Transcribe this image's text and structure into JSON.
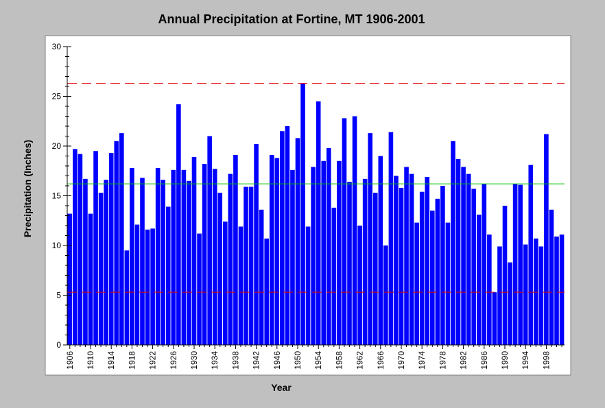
{
  "chart_data": {
    "type": "bar",
    "title": "Annual Precipitation at Fortine, MT 1906-2001",
    "xlabel": "Year",
    "ylabel": "Precipitation (Inches)",
    "ylim": [
      0,
      30
    ],
    "yticks": [
      "0",
      "5",
      "10",
      "15",
      "20",
      "25",
      "30"
    ],
    "xtick_labels": [
      "1906",
      "1910",
      "1914",
      "1918",
      "1922",
      "1926",
      "1930",
      "1934",
      "1938",
      "1942",
      "1946",
      "1950",
      "1954",
      "1958",
      "1962",
      "1966",
      "1970",
      "1974",
      "1978",
      "1982",
      "1986",
      "1990",
      "1994",
      "1998"
    ],
    "grid": false,
    "legend": "none",
    "colors": {
      "bars": "#0000ff",
      "mean_line": "#00c000",
      "limit_lines": "#e00000",
      "plot_bg": "#ffffff",
      "frame_bg": "#c0c0c0"
    },
    "categories": [
      1906,
      1907,
      1908,
      1909,
      1910,
      1911,
      1912,
      1913,
      1914,
      1915,
      1916,
      1917,
      1918,
      1919,
      1920,
      1921,
      1922,
      1923,
      1924,
      1925,
      1926,
      1927,
      1928,
      1929,
      1930,
      1931,
      1932,
      1933,
      1934,
      1935,
      1936,
      1937,
      1938,
      1939,
      1940,
      1941,
      1942,
      1943,
      1944,
      1945,
      1946,
      1947,
      1948,
      1949,
      1950,
      1951,
      1952,
      1953,
      1954,
      1955,
      1956,
      1957,
      1958,
      1959,
      1960,
      1961,
      1962,
      1963,
      1964,
      1965,
      1966,
      1967,
      1968,
      1969,
      1970,
      1971,
      1972,
      1973,
      1974,
      1975,
      1976,
      1977,
      1978,
      1979,
      1980,
      1981,
      1982,
      1983,
      1984,
      1985,
      1986,
      1987,
      1988,
      1989,
      1990,
      1991,
      1992,
      1993,
      1994,
      1995,
      1996,
      1997,
      1998,
      1999,
      2000,
      2001
    ],
    "values": [
      13.2,
      19.7,
      19.2,
      16.7,
      13.2,
      19.5,
      15.3,
      16.6,
      19.3,
      20.5,
      21.3,
      9.5,
      17.8,
      12.1,
      16.8,
      11.6,
      11.7,
      17.8,
      16.6,
      13.9,
      17.6,
      24.2,
      17.6,
      16.5,
      18.9,
      11.2,
      18.2,
      21.0,
      17.7,
      15.3,
      12.4,
      17.2,
      19.1,
      11.9,
      15.9,
      15.9,
      20.2,
      13.6,
      10.7,
      19.1,
      18.8,
      21.5,
      22.0,
      17.6,
      20.8,
      26.3,
      11.9,
      17.9,
      24.5,
      18.5,
      19.8,
      13.8,
      18.5,
      22.8,
      16.4,
      23.0,
      12.0,
      16.7,
      21.3,
      15.3,
      19.0,
      10.0,
      21.4,
      17.0,
      15.8,
      17.9,
      17.2,
      12.3,
      15.4,
      16.9,
      13.5,
      14.7,
      16.0,
      12.3,
      20.5,
      18.7,
      17.9,
      17.2,
      15.7,
      13.1,
      16.2,
      11.1,
      5.3,
      9.9,
      14.0,
      8.3,
      16.2,
      16.1,
      10.1,
      18.1,
      10.7,
      9.9,
      21.2,
      13.6,
      10.9,
      11.1
    ],
    "reference_lines": [
      {
        "kind": "mean",
        "value": 16.2
      },
      {
        "kind": "upper",
        "value": 26.3
      },
      {
        "kind": "lower",
        "value": 5.3
      }
    ]
  }
}
